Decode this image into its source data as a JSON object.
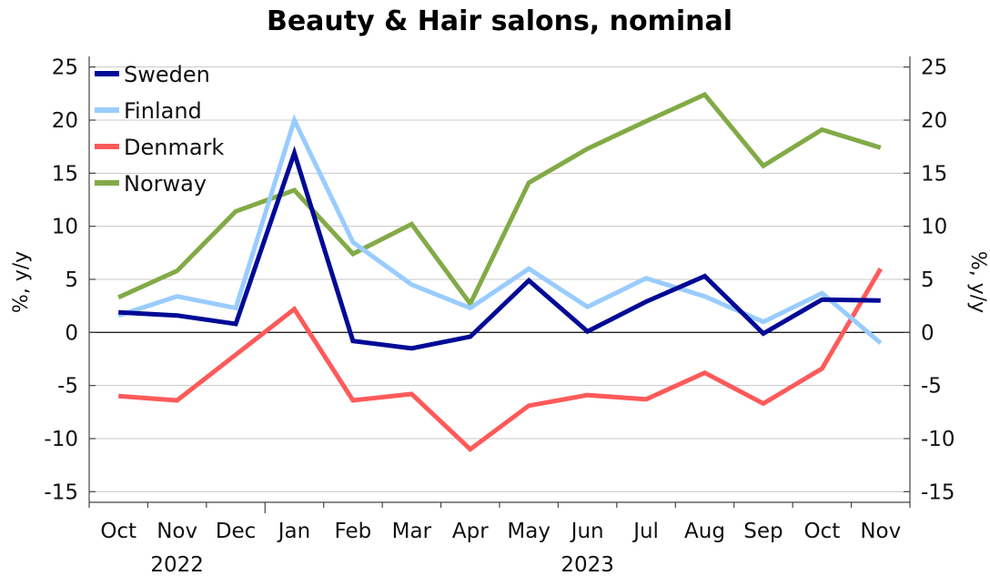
{
  "chart_data": {
    "type": "line",
    "title": "Beauty & Hair salons, nominal",
    "ylabel_left": "%, y/y",
    "ylabel_right": "%, y/y",
    "ylim": [
      -16,
      26
    ],
    "yticks": [
      -15,
      -10,
      -5,
      0,
      5,
      10,
      15,
      20,
      25
    ],
    "x": [
      "Oct",
      "Nov",
      "Dec",
      "Jan",
      "Feb",
      "Mar",
      "Apr",
      "May",
      "Jun",
      "Jul",
      "Aug",
      "Sep",
      "Oct",
      "Nov"
    ],
    "year_labels": [
      {
        "label": "2022",
        "span": [
          0,
          2
        ]
      },
      {
        "label": "2023",
        "span": [
          3,
          13
        ]
      }
    ],
    "legend_placement": "top-left",
    "grid": true,
    "series": [
      {
        "name": "Sweden",
        "color": "#000a96",
        "values": [
          1.9,
          1.6,
          0.8,
          16.9,
          -0.8,
          -1.5,
          -0.4,
          4.9,
          0.1,
          2.9,
          5.3,
          -0.1,
          3.1,
          3.0
        ]
      },
      {
        "name": "Finland",
        "color": "#99ccff",
        "values": [
          1.6,
          3.4,
          2.3,
          20.0,
          8.5,
          4.5,
          2.3,
          6.0,
          2.4,
          5.1,
          3.4,
          1.0,
          3.7,
          -1.0
        ]
      },
      {
        "name": "Denmark",
        "color": "#ff5a5a",
        "values": [
          -6.0,
          -6.4,
          -2.1,
          2.2,
          -6.4,
          -5.8,
          -11.0,
          -6.9,
          -5.9,
          -6.3,
          -3.8,
          -6.7,
          -3.4,
          6.0
        ]
      },
      {
        "name": "Norway",
        "color": "#82aa46",
        "values": [
          3.3,
          5.8,
          11.4,
          13.4,
          7.4,
          10.2,
          2.7,
          14.1,
          17.3,
          19.9,
          22.4,
          15.7,
          19.1,
          17.4
        ]
      }
    ]
  }
}
